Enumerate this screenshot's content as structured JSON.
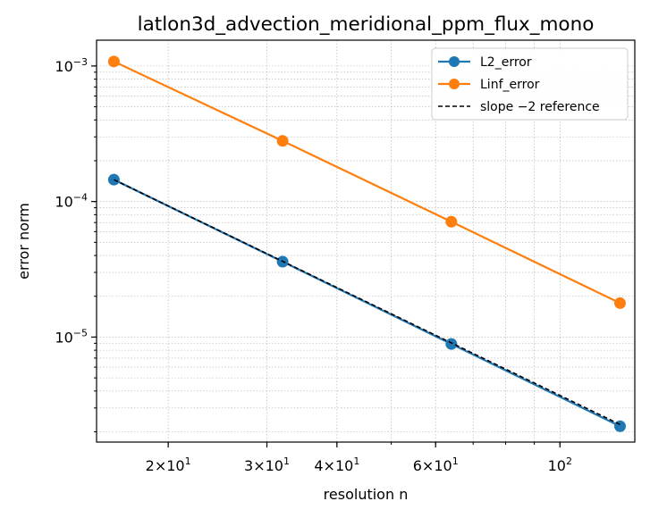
{
  "chart_data": {
    "type": "line",
    "title": "latlon3d_advection_meridional_ppm_flux_mono",
    "xlabel": "resolution n",
    "ylabel": "error norm",
    "xscale": "log",
    "yscale": "log",
    "xlim": [
      14.9,
      136.0
    ],
    "ylim": [
      1.68e-06,
      0.00155
    ],
    "grid": true,
    "legend_position": "top-right",
    "x": [
      16,
      32,
      64,
      128
    ],
    "series": [
      {
        "name": "L2_error",
        "values": [
          0.000145,
          3.6e-05,
          8.9e-06,
          2.2e-06
        ],
        "color": "#1f77b4",
        "marker": "circle",
        "linestyle": "solid"
      },
      {
        "name": "Linf_error",
        "values": [
          0.00108,
          0.00028,
          7.1e-05,
          1.78e-05
        ],
        "color": "#ff7f0e",
        "marker": "circle",
        "linestyle": "solid"
      },
      {
        "name": "slope −2 reference",
        "values": [
          0.000145,
          3.625e-05,
          9.0625e-06,
          2.26563e-06
        ],
        "color": "#000000",
        "marker": "none",
        "linestyle": "dashed"
      }
    ],
    "xticks": [
      {
        "value": 20,
        "mantissa": "2",
        "base": "10",
        "exp": "1"
      },
      {
        "value": 30,
        "mantissa": "3",
        "base": "10",
        "exp": "1"
      },
      {
        "value": 40,
        "mantissa": "4",
        "base": "10",
        "exp": "1"
      },
      {
        "value": 60,
        "mantissa": "6",
        "base": "10",
        "exp": "1"
      },
      {
        "value": 100,
        "mantissa": "",
        "base": "10",
        "exp": "2"
      }
    ],
    "yticks": [
      {
        "value": 0.001,
        "base": "10",
        "exp": "−3"
      },
      {
        "value": 0.0001,
        "base": "10",
        "exp": "−4"
      },
      {
        "value": 1e-05,
        "base": "10",
        "exp": "−5"
      }
    ]
  }
}
